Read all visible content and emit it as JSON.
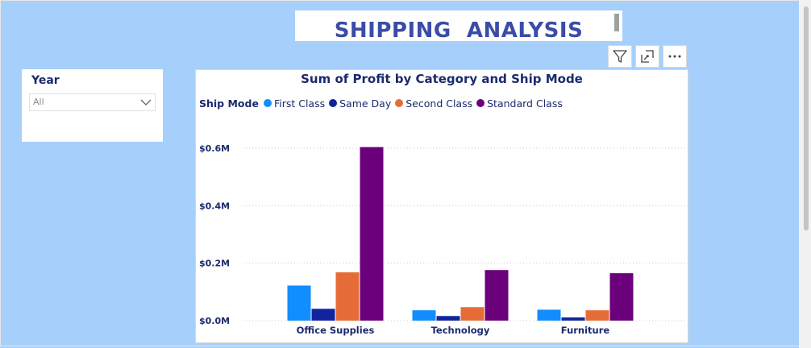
{
  "report": {
    "title": "SHIPPING  ANALYSIS"
  },
  "visual_toolbar": {
    "filter_icon": "funnel-icon",
    "focus_icon": "expand-icon",
    "more_icon": "ellipsis-icon"
  },
  "slicer": {
    "title": "Year",
    "selected": "All",
    "chevron_icon": "chevron-down-icon"
  },
  "colors": {
    "background": "#a6d0fb",
    "title_text": "#3b4ca8",
    "chart_text": "#1b2a6b"
  },
  "chart_data": {
    "type": "bar",
    "title": "Sum of Profit by Category and Ship Mode",
    "legend_title": "Ship Mode",
    "legend_placement": "top-left",
    "categories": [
      "Office Supplies",
      "Technology",
      "Furniture"
    ],
    "series": [
      {
        "name": "First Class",
        "color": "#118dff",
        "values": [
          0.122,
          0.036,
          0.038
        ]
      },
      {
        "name": "Same Day",
        "color": "#12239e",
        "values": [
          0.041,
          0.016,
          0.011
        ]
      },
      {
        "name": "Second Class",
        "color": "#e66c37",
        "values": [
          0.168,
          0.047,
          0.036
        ]
      },
      {
        "name": "Standard Class",
        "color": "#6b007b",
        "values": [
          0.604,
          0.176,
          0.165
        ]
      }
    ],
    "y_ticks": [
      0.0,
      0.2,
      0.4,
      0.6
    ],
    "y_tick_labels": [
      "$0.0M",
      "$0.2M",
      "$0.4M",
      "$0.6M"
    ],
    "ylim": [
      0,
      0.6
    ],
    "grid": true
  }
}
